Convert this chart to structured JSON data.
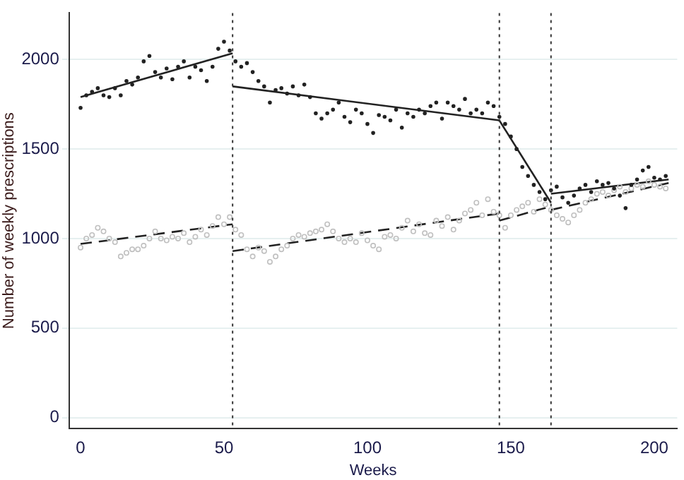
{
  "chart_data": {
    "type": "scatter",
    "xlabel": "Weeks",
    "ylabel": "Number of weekly prescriptions",
    "xlim": [
      -4,
      208
    ],
    "xticks": [
      0,
      50,
      100,
      150,
      200
    ],
    "ylim": [
      -60,
      2260
    ],
    "yticks": [
      0,
      500,
      1000,
      1500,
      2000
    ],
    "grid": "y",
    "legend": false,
    "ref_lines": [
      {
        "axis": "x",
        "value": 53,
        "color": "#333333",
        "line_style": "dotted"
      },
      {
        "axis": "x",
        "value": 146,
        "color": "#333333",
        "line_style": "dotted"
      },
      {
        "axis": "x",
        "value": 164,
        "color": "#333333",
        "line_style": "dotted"
      }
    ],
    "series": [
      {
        "color": "#222222",
        "marker": "circle",
        "x": [
          0,
          2,
          4,
          6,
          8,
          10,
          12,
          14,
          16,
          18,
          20,
          22,
          24,
          26,
          28,
          30,
          32,
          34,
          36,
          38,
          40,
          42,
          44,
          46,
          48,
          50,
          52,
          54,
          56,
          58,
          60,
          62,
          64,
          66,
          68,
          70,
          72,
          74,
          76,
          78,
          80,
          82,
          84,
          86,
          88,
          90,
          92,
          94,
          96,
          98,
          100,
          102,
          104,
          106,
          108,
          110,
          112,
          114,
          116,
          118,
          120,
          122,
          124,
          126,
          128,
          130,
          132,
          134,
          136,
          138,
          140,
          142,
          144,
          146,
          148,
          150,
          152,
          154,
          156,
          158,
          160,
          162,
          164,
          166,
          168,
          170,
          172,
          174,
          176,
          178,
          180,
          182,
          184,
          186,
          188,
          190,
          192,
          194,
          196,
          198,
          200,
          202,
          204
        ],
        "values": [
          1730,
          1800,
          1820,
          1840,
          1800,
          1790,
          1840,
          1800,
          1880,
          1860,
          1900,
          1990,
          2020,
          1930,
          1900,
          1950,
          1890,
          1960,
          1990,
          1900,
          1960,
          1940,
          1880,
          1960,
          2060,
          2100,
          2050,
          1990,
          1960,
          1980,
          1930,
          1880,
          1850,
          1760,
          1830,
          1840,
          1810,
          1850,
          1800,
          1860,
          1790,
          1700,
          1670,
          1700,
          1720,
          1760,
          1680,
          1650,
          1720,
          1700,
          1640,
          1590,
          1690,
          1680,
          1660,
          1720,
          1620,
          1700,
          1680,
          1720,
          1700,
          1740,
          1760,
          1670,
          1760,
          1740,
          1720,
          1780,
          1700,
          1720,
          1700,
          1760,
          1740,
          1680,
          1640,
          1570,
          1500,
          1400,
          1350,
          1300,
          1260,
          1220,
          1270,
          1290,
          1230,
          1200,
          1240,
          1280,
          1300,
          1260,
          1320,
          1300,
          1310,
          1280,
          1240,
          1170,
          1300,
          1330,
          1380,
          1400,
          1340,
          1330,
          1350
        ]
      },
      {
        "color": "#c0c0c0",
        "marker": "circle",
        "x": [
          0,
          2,
          4,
          6,
          8,
          10,
          12,
          14,
          16,
          18,
          20,
          22,
          24,
          26,
          28,
          30,
          32,
          34,
          36,
          38,
          40,
          42,
          44,
          46,
          48,
          50,
          52,
          54,
          56,
          58,
          60,
          62,
          64,
          66,
          68,
          70,
          72,
          74,
          76,
          78,
          80,
          82,
          84,
          86,
          88,
          90,
          92,
          94,
          96,
          98,
          100,
          102,
          104,
          106,
          108,
          110,
          112,
          114,
          116,
          118,
          120,
          122,
          124,
          126,
          128,
          130,
          132,
          134,
          136,
          138,
          140,
          142,
          144,
          146,
          148,
          150,
          152,
          154,
          156,
          158,
          160,
          162,
          164,
          166,
          168,
          170,
          172,
          174,
          176,
          178,
          180,
          182,
          184,
          186,
          188,
          190,
          192,
          194,
          196,
          198,
          200,
          202,
          204
        ],
        "values": [
          950,
          1000,
          1020,
          1060,
          1040,
          1000,
          980,
          900,
          920,
          940,
          940,
          960,
          1000,
          1040,
          1000,
          990,
          1010,
          1000,
          1030,
          980,
          1010,
          1050,
          1020,
          1070,
          1120,
          1080,
          1120,
          1050,
          1020,
          940,
          900,
          950,
          930,
          870,
          900,
          940,
          960,
          1000,
          1020,
          1010,
          1030,
          1040,
          1050,
          1080,
          1040,
          1000,
          980,
          1000,
          980,
          1030,
          990,
          960,
          940,
          1010,
          1020,
          1000,
          1060,
          1100,
          1040,
          1080,
          1030,
          1020,
          1100,
          1070,
          1120,
          1050,
          1100,
          1140,
          1160,
          1200,
          1130,
          1220,
          1150,
          1130,
          1060,
          1130,
          1160,
          1180,
          1200,
          1150,
          1220,
          1190,
          1160,
          1130,
          1110,
          1090,
          1130,
          1160,
          1200,
          1220,
          1250,
          1260,
          1240,
          1270,
          1290,
          1260,
          1280,
          1300,
          1290,
          1320,
          1300,
          1290,
          1280
        ]
      },
      {
        "type": "line",
        "color": "#222222",
        "marker": "none",
        "line_style": "solid",
        "x": [
          0,
          53
        ],
        "values": [
          1790,
          2035
        ]
      },
      {
        "type": "line",
        "color": "#222222",
        "marker": "none",
        "line_style": "solid",
        "x": [
          53,
          146
        ],
        "values": [
          1850,
          1660
        ]
      },
      {
        "type": "line",
        "color": "#222222",
        "marker": "none",
        "line_style": "solid",
        "x": [
          146,
          164
        ],
        "values": [
          1660,
          1200
        ]
      },
      {
        "type": "line",
        "color": "#222222",
        "marker": "none",
        "line_style": "solid",
        "x": [
          164,
          205
        ],
        "values": [
          1250,
          1330
        ]
      },
      {
        "type": "line",
        "color": "#222222",
        "marker": "none",
        "line_style": "dashed",
        "x": [
          0,
          53
        ],
        "values": [
          970,
          1080
        ]
      },
      {
        "type": "line",
        "color": "#222222",
        "marker": "none",
        "line_style": "dashed",
        "x": [
          53,
          146
        ],
        "values": [
          930,
          1140
        ]
      },
      {
        "type": "line",
        "color": "#222222",
        "marker": "none",
        "line_style": "dashed",
        "x": [
          146,
          164
        ],
        "values": [
          1100,
          1180
        ]
      },
      {
        "type": "line",
        "color": "#222222",
        "marker": "none",
        "line_style": "dashed",
        "x": [
          164,
          205
        ],
        "values": [
          1160,
          1310
        ]
      }
    ]
  }
}
